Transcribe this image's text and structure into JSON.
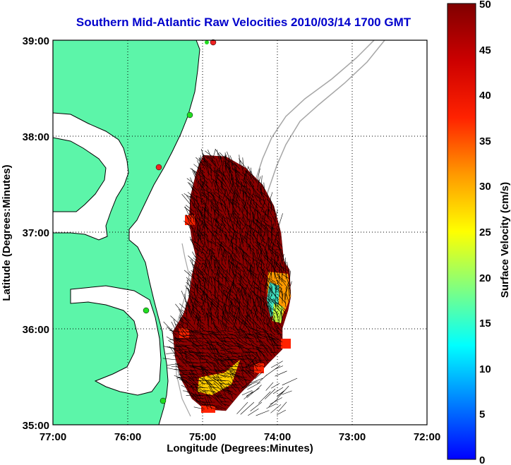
{
  "title": "Southern Mid-Atlantic Raw Velocities 2010/03/14 1700 GMT",
  "xlabel": "Longitude (Degrees:Minutes)",
  "ylabel": "Latitude (Degrees:Minutes)",
  "colorbar_label": "Surface Velocity (cm/s)",
  "x_ticks": [
    "77:00",
    "76:00",
    "75:00",
    "74:00",
    "73:00",
    "72:00"
  ],
  "y_ticks": [
    "39:00",
    "38:00",
    "37:00",
    "36:00",
    "35:00"
  ],
  "colorbar_ticks": [
    "50",
    "45",
    "40",
    "35",
    "30",
    "25",
    "20",
    "15",
    "10",
    "5",
    "0"
  ],
  "colors": {
    "land": "#5cf5a9",
    "coastline": "#000000",
    "bathymetry": "#a6a6a6",
    "station_green": "#22dd22",
    "station_red": "#ee2222",
    "title": "#0000cc",
    "velocity_high": "#8b0000"
  },
  "map_extent": {
    "lon_west": -77,
    "lon_east": -72,
    "lat_south": 35,
    "lat_north": 39
  },
  "colorbar_range": [
    0,
    50
  ]
}
